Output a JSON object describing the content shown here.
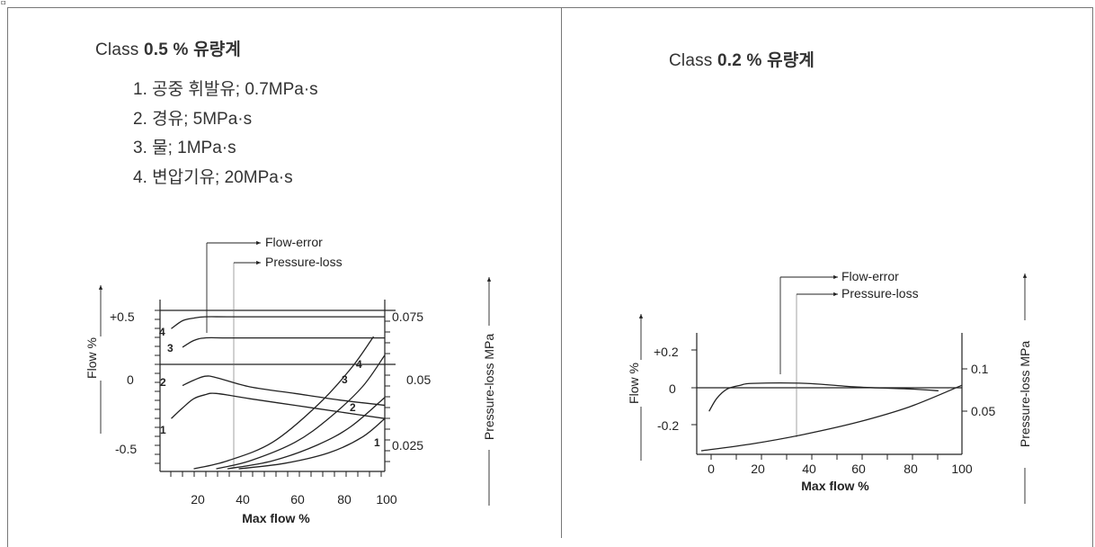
{
  "corner_mark": "ㅁ",
  "left": {
    "title_prefix": "Class ",
    "title_value": "0.5",
    "title_suffix": " %  유량계",
    "items": [
      "1. 공중 휘발유; 0.7MPa·s",
      "2. 경유; 5MPa·s",
      "3. 물; 1MPa·s",
      "4. 변압기유; 20MPa·s"
    ],
    "flow_error_label": "Flow-error",
    "pressure_loss_label": "Pressure-loss",
    "ylabel_left": "Flow %",
    "ylabel_right": "Pressure-loss MPa",
    "xlabel": "Max flow %",
    "x_ticks": [
      "20",
      "40",
      "60",
      "80",
      "100"
    ],
    "y_left_ticks": [
      "+0.5",
      "0",
      "-0.5"
    ],
    "y_right_ticks": [
      "0.075",
      "0.05",
      "0.025"
    ],
    "curve_labels": [
      "4",
      "3",
      "2",
      "1",
      "4",
      "3",
      "2",
      "1"
    ]
  },
  "right": {
    "title_prefix": "Class ",
    "title_value": "0.2",
    "title_suffix": " %  유량계",
    "flow_error_label": "Flow-error",
    "pressure_loss_label": "Pressure-loss",
    "ylabel_left": "Flow %",
    "ylabel_right": "Pressure-loss MPa",
    "xlabel": "Max flow %",
    "x_ticks": [
      "0",
      "20",
      "40",
      "60",
      "80",
      "100"
    ],
    "y_left_ticks": [
      "+0.2",
      "0",
      "-0.2"
    ],
    "y_right_ticks": [
      "0.1",
      "0.05"
    ]
  },
  "chart_data": [
    {
      "type": "line",
      "xlabel": "Max flow %",
      "ylabel": "Flow %",
      "y2label": "Pressure-loss MPa",
      "xlim": [
        0,
        100
      ],
      "ylim": [
        -0.7,
        0.6
      ],
      "y2lim": [
        0.017,
        0.082
      ],
      "series": [
        {
          "name": "4",
          "kind": "flow-error",
          "x": [
            5,
            10,
            15,
            20,
            30,
            50,
            70,
            100
          ],
          "y": [
            0.38,
            0.44,
            0.46,
            0.47,
            0.47,
            0.47,
            0.47,
            0.47
          ]
        },
        {
          "name": "3",
          "kind": "flow-error",
          "x": [
            10,
            15,
            20,
            30,
            50,
            70,
            100
          ],
          "y": [
            0.24,
            0.29,
            0.31,
            0.31,
            0.31,
            0.31,
            0.31
          ]
        },
        {
          "name": "2",
          "kind": "flow-error",
          "x": [
            10,
            15,
            20,
            25,
            40,
            60,
            80,
            100
          ],
          "y": [
            -0.05,
            -0.01,
            0.02,
            0.01,
            -0.06,
            -0.11,
            -0.16,
            -0.2
          ]
        },
        {
          "name": "1",
          "kind": "flow-error",
          "x": [
            5,
            10,
            15,
            20,
            25,
            40,
            60,
            80,
            100
          ],
          "y": [
            -0.3,
            -0.22,
            -0.15,
            -0.12,
            -0.11,
            -0.15,
            -0.2,
            -0.25,
            -0.3
          ]
        },
        {
          "name": "4",
          "kind": "pressure-loss",
          "x": [
            15,
            30,
            50,
            70,
            85,
            95
          ],
          "y": [
            0.018,
            0.021,
            0.028,
            0.042,
            0.056,
            0.068
          ]
        },
        {
          "name": "3",
          "kind": "pressure-loss",
          "x": [
            25,
            40,
            60,
            75,
            90,
            100
          ],
          "y": [
            0.018,
            0.021,
            0.028,
            0.037,
            0.049,
            0.061
          ]
        },
        {
          "name": "2",
          "kind": "pressure-loss",
          "x": [
            30,
            50,
            70,
            85,
            100
          ],
          "y": [
            0.018,
            0.021,
            0.027,
            0.034,
            0.045
          ]
        },
        {
          "name": "1",
          "kind": "pressure-loss",
          "x": [
            35,
            55,
            75,
            90,
            100
          ],
          "y": [
            0.018,
            0.02,
            0.024,
            0.03,
            0.037
          ]
        }
      ]
    },
    {
      "type": "line",
      "xlabel": "Max flow %",
      "ylabel": "Flow %",
      "y2label": "Pressure-loss MPa",
      "xlim": [
        0,
        100
      ],
      "ylim": [
        -0.3,
        0.35
      ],
      "y2lim": [
        0.028,
        0.13
      ],
      "series": [
        {
          "kind": "flow-error",
          "x": [
            3,
            6,
            10,
            15,
            20,
            40,
            60,
            80,
            91
          ],
          "y": [
            -0.07,
            0.0,
            0.05,
            0.07,
            0.08,
            0.08,
            0.06,
            0.05,
            0.04
          ]
        },
        {
          "kind": "pressure-loss",
          "x": [
            0,
            20,
            40,
            60,
            80,
            100
          ],
          "y": [
            0.031,
            0.037,
            0.045,
            0.055,
            0.068,
            0.086
          ]
        }
      ]
    }
  ]
}
